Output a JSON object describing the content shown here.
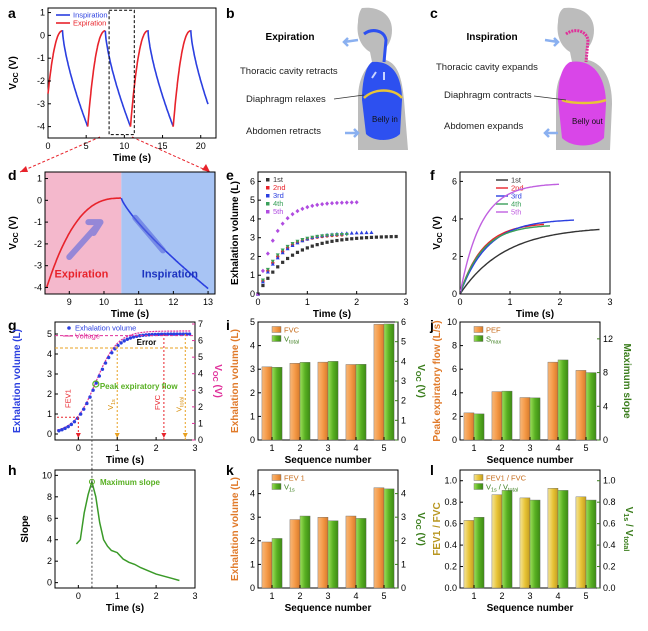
{
  "panel_labels": [
    "a",
    "b",
    "c",
    "d",
    "e",
    "f",
    "g",
    "h",
    "i",
    "j",
    "k",
    "l"
  ],
  "colors": {
    "blue": "#2b3fe0",
    "red": "#e8232b",
    "orange": "#f59a48",
    "green": "#58b022",
    "darkgreen": "#3a7d1c",
    "magenta": "#e0309a",
    "pink": "#f4b8cc",
    "lightblue": "#a8c4f4",
    "gold": "#e8c437"
  },
  "diagram_b": {
    "title": "Expiration",
    "labels": [
      "Thoracic cavity retracts",
      "Diaphragm relaxes",
      "Abdomen retracts"
    ],
    "belly": "Belly in"
  },
  "diagram_c": {
    "title": "Inspiration",
    "labels": [
      "Thoracic cavity expands",
      "Diaphragm contracts",
      "Abdomen expands"
    ],
    "belly": "Belly out"
  },
  "chart_data": [
    {
      "panel": "a",
      "type": "line",
      "xlabel": "Time (s)",
      "ylabel": "V_OC (V)",
      "xlim": [
        0,
        22
      ],
      "ylim": [
        -4.5,
        1.2
      ],
      "xticks": [
        "0",
        "5",
        "10",
        "15",
        "20"
      ],
      "yticks": [
        "1",
        "0",
        "-1",
        "-2",
        "-3",
        "-4"
      ],
      "series": [
        {
          "name": "Inspiration",
          "color": "#2b3fe0"
        },
        {
          "name": "Expiration",
          "color": "#e8232b"
        }
      ]
    },
    {
      "panel": "d",
      "type": "line",
      "xlabel": "Time (s)",
      "ylabel": "V_OC (V)",
      "xlim": [
        8.3,
        13.2
      ],
      "ylim": [
        -4.3,
        1.3
      ],
      "xticks": [
        "9",
        "10",
        "11",
        "12",
        "13"
      ],
      "yticks": [
        "1",
        "0",
        "-1",
        "-2",
        "-3",
        "-4"
      ],
      "regions": [
        "Expiration",
        "Inspiration"
      ]
    },
    {
      "panel": "e",
      "type": "scatter",
      "xlabel": "Time (s)",
      "ylabel": "Exhalation volume (L)",
      "xlim": [
        0,
        3
      ],
      "ylim": [
        0,
        6.5
      ],
      "xticks": [
        "0",
        "1",
        "2",
        "3"
      ],
      "yticks": [
        "0",
        "1",
        "2",
        "3",
        "4",
        "5",
        "6"
      ],
      "series": [
        {
          "name": "1st",
          "color": "#333333",
          "marker": "square",
          "max": 3.1,
          "end": 2.8
        },
        {
          "name": "2nd",
          "color": "#e8232b",
          "marker": "circle",
          "max": 3.2,
          "end": 1.7
        },
        {
          "name": "3rd",
          "color": "#2b3fe0",
          "marker": "triangle",
          "max": 3.3,
          "end": 2.3
        },
        {
          "name": "4th",
          "color": "#3aa05a",
          "marker": "tri-down",
          "max": 3.2,
          "end": 1.8
        },
        {
          "name": "5th",
          "color": "#b04ce0",
          "marker": "diamond",
          "max": 4.9,
          "end": 2.0
        }
      ]
    },
    {
      "panel": "f",
      "type": "line",
      "xlabel": "Time (s)",
      "ylabel": "V_OC (V)",
      "xlim": [
        0,
        3
      ],
      "ylim": [
        0,
        6.5
      ],
      "xticks": [
        "0",
        "1",
        "2",
        "3"
      ],
      "yticks": [
        "0",
        "2",
        "4",
        "6"
      ],
      "series": [
        {
          "name": "1st",
          "color": "#333333",
          "max": 3.6,
          "end": 2.8
        },
        {
          "name": "2nd",
          "color": "#e8232b",
          "max": 3.8,
          "end": 1.7
        },
        {
          "name": "3rd",
          "color": "#2b3fe0",
          "max": 4.0,
          "end": 2.3
        },
        {
          "name": "4th",
          "color": "#3aa05a",
          "max": 3.7,
          "end": 1.8
        },
        {
          "name": "5th",
          "color": "#c060e0",
          "max": 5.9,
          "end": 2.0
        }
      ]
    },
    {
      "panel": "g",
      "type": "line",
      "xlabel": "Time (s)",
      "ylabel": "Exhalation volume (L)",
      "y2label": "V_OC (V)",
      "xlim": [
        -0.6,
        3
      ],
      "ylim": [
        -0.3,
        5.6
      ],
      "xticks": [
        "0",
        "1",
        "2",
        "3"
      ],
      "yticks": [
        "0",
        "1",
        "2",
        "3",
        "4",
        "5"
      ],
      "y2ticks": [
        "0",
        "1",
        "2",
        "3",
        "4",
        "5",
        "6",
        "7"
      ],
      "series": [
        {
          "name": "Exhalation volume",
          "color": "#2b3fe0"
        },
        {
          "name": "Voltage",
          "color": "#e0309a"
        }
      ],
      "annotations": [
        "Error",
        "FEV1",
        "V_1s",
        "FVC",
        "V_total",
        "Peak expiratory flow"
      ]
    },
    {
      "panel": "h",
      "type": "line",
      "xlabel": "Time (s)",
      "ylabel": "Slope",
      "xlim": [
        -0.6,
        3
      ],
      "ylim": [
        -0.5,
        10.5
      ],
      "xticks": [
        "0",
        "1",
        "2",
        "3"
      ],
      "yticks": [
        "0",
        "2",
        "4",
        "6",
        "8",
        "10"
      ],
      "annotations": [
        "Maximum slope"
      ]
    },
    {
      "panel": "i",
      "type": "bar",
      "xlabel": "Sequence number",
      "ylabel": "Exhalation volume (L)",
      "y2label": "V_OC (V)",
      "categories": [
        "1",
        "2",
        "3",
        "4",
        "5"
      ],
      "ylim": [
        0,
        5
      ],
      "y2lim": [
        0,
        6
      ],
      "yticks": [
        "0",
        "1",
        "2",
        "3",
        "4",
        "5"
      ],
      "y2ticks": [
        "0",
        "1",
        "2",
        "3",
        "4",
        "5",
        "6"
      ],
      "series": [
        {
          "name": "FVC",
          "values": [
            3.1,
            3.25,
            3.3,
            3.2,
            4.9
          ],
          "color": "#f59a48"
        },
        {
          "name": "V_total",
          "values": [
            3.7,
            3.95,
            4.0,
            3.85,
            5.9
          ],
          "color": "#58b022",
          "axis": "right"
        }
      ]
    },
    {
      "panel": "j",
      "type": "bar",
      "xlabel": "Sequence number",
      "ylabel": "Peak expiratory flow (L/s)",
      "y2label": "Maximum slope",
      "categories": [
        "1",
        "2",
        "3",
        "4",
        "5"
      ],
      "ylim": [
        0,
        10
      ],
      "y2lim": [
        0,
        14
      ],
      "yticks": [
        "0",
        "2",
        "4",
        "6",
        "8",
        "10"
      ],
      "y2ticks": [
        "0",
        "4",
        "8",
        "12"
      ],
      "series": [
        {
          "name": "PEF",
          "values": [
            2.3,
            4.1,
            3.6,
            6.6,
            5.9
          ],
          "color": "#f59a48"
        },
        {
          "name": "S_max",
          "values": [
            3.1,
            5.8,
            5.0,
            9.5,
            8.0
          ],
          "color": "#58b022",
          "axis": "right"
        }
      ]
    },
    {
      "panel": "k",
      "type": "bar",
      "xlabel": "Sequence number",
      "ylabel": "Exhalation volume (L)",
      "y2label": "V_OC (V)",
      "categories": [
        "1",
        "2",
        "3",
        "4",
        "5"
      ],
      "ylim": [
        0,
        5
      ],
      "y2lim": [
        0,
        5
      ],
      "yticks": [
        "0",
        "1",
        "2",
        "3",
        "4"
      ],
      "y2ticks": [
        "0",
        "1",
        "2",
        "3",
        "4"
      ],
      "series": [
        {
          "name": "FEV 1",
          "values": [
            1.95,
            2.9,
            3.0,
            3.05,
            4.25
          ],
          "color": "#f59a48"
        },
        {
          "name": "V_1s",
          "values": [
            2.1,
            3.05,
            2.85,
            2.95,
            4.2
          ],
          "color": "#58b022",
          "axis": "right"
        }
      ]
    },
    {
      "panel": "l",
      "type": "bar",
      "xlabel": "Sequence number",
      "ylabel": "FEV1 / FVC",
      "y2label": "V_1s / V_total",
      "categories": [
        "1",
        "2",
        "3",
        "4",
        "5"
      ],
      "ylim": [
        0,
        1.1
      ],
      "y2lim": [
        0,
        1.1
      ],
      "yticks": [
        "0.0",
        "0.2",
        "0.4",
        "0.6",
        "0.8",
        "1.0"
      ],
      "y2ticks": [
        "0.0",
        "0.2",
        "0.4",
        "0.6",
        "0.8",
        "1.0"
      ],
      "series": [
        {
          "name": "FEV1 / FVC",
          "values": [
            0.63,
            0.87,
            0.84,
            0.93,
            0.85
          ],
          "color": "#e8c437"
        },
        {
          "name": "V_1s / V_total",
          "values": [
            0.66,
            0.91,
            0.82,
            0.91,
            0.82
          ],
          "color": "#58b022",
          "axis": "right"
        }
      ]
    }
  ]
}
